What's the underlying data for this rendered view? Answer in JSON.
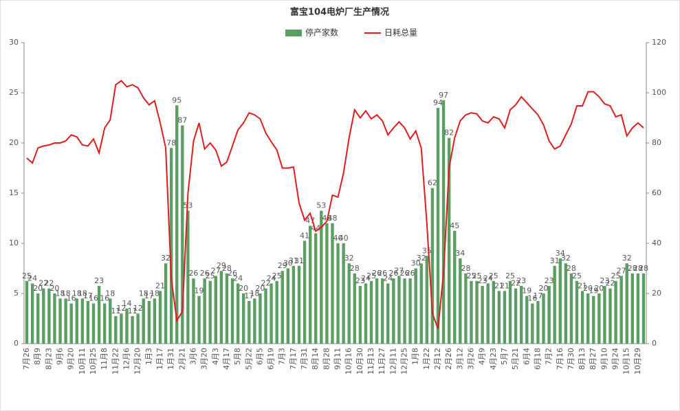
{
  "chart_data": {
    "type": "bar",
    "title": "富宝104电炉厂生产情况",
    "categories": [
      "7月26",
      null,
      "8月9",
      null,
      "8月23",
      null,
      "9月6",
      null,
      "9月20",
      null,
      "10月11",
      null,
      "10月25",
      null,
      "11月8",
      null,
      "11月22",
      null,
      "12月6",
      null,
      "12月20",
      null,
      "1月3",
      null,
      "1月17",
      null,
      "1月31",
      null,
      "2月21",
      null,
      "3月6",
      null,
      "3月20",
      null,
      "4月3",
      null,
      "4月17",
      null,
      "5月8",
      null,
      "5月22",
      null,
      "6月5",
      null,
      "6月19",
      null,
      "7月3",
      null,
      "7月17",
      null,
      "7月31",
      null,
      "8月14",
      null,
      "8月28",
      null,
      "9月11",
      null,
      "10月16",
      null,
      "10月30",
      null,
      "11月13",
      null,
      "11月27",
      null,
      "12月11",
      null,
      "12月25",
      null,
      "1月8",
      null,
      "1月22",
      null,
      "2月12",
      null,
      "2月26",
      null,
      "3月12",
      null,
      "3月26",
      null,
      "4月9",
      null,
      "4月23",
      null,
      "5月7",
      null,
      "5月21",
      null,
      "6月4",
      null,
      "6月18",
      null,
      "7月2",
      null,
      "7月16",
      null,
      "7月30",
      null,
      "8月13",
      null,
      "8月27",
      null,
      "9月10",
      null,
      "9月24",
      null,
      "10月15",
      null,
      "10月29",
      null
    ],
    "series": [
      {
        "name": "停产家数",
        "type": "bar",
        "axis": "y2",
        "color": "#5a9e62",
        "values": [
          25,
          24,
          20,
          22,
          22,
          20,
          18,
          18,
          16,
          18,
          18,
          17,
          16,
          23,
          16,
          18,
          11,
          12,
          14,
          11,
          12,
          18,
          17,
          18,
          21,
          32,
          78,
          95,
          87,
          53,
          26,
          19,
          26,
          25,
          27,
          29,
          28,
          26,
          24,
          20,
          17,
          18,
          20,
          22,
          24,
          25,
          29,
          30,
          31,
          31,
          41,
          47,
          44,
          53,
          48,
          48,
          40,
          40,
          32,
          28,
          23,
          24,
          25,
          26,
          26,
          24,
          26,
          27,
          26,
          26,
          30,
          32,
          35,
          62,
          94,
          97,
          82,
          45,
          34,
          28,
          25,
          25,
          23,
          24,
          25,
          21,
          21,
          25,
          22,
          23,
          19,
          16,
          17,
          20,
          23,
          31,
          34,
          32,
          28,
          25,
          21,
          20,
          19,
          20,
          23,
          22,
          25,
          27,
          32,
          28,
          28,
          28
        ]
      },
      {
        "name": "日耗总量",
        "type": "line",
        "axis": "y",
        "color": "#e31a1c",
        "values": [
          18.5,
          18,
          19.5,
          19.7,
          19.8,
          20,
          20,
          20.2,
          20.8,
          20.6,
          19.8,
          19.7,
          20.4,
          19,
          21.5,
          22.3,
          25.8,
          26.2,
          25.6,
          25.8,
          25.5,
          24.5,
          23.8,
          24.2,
          22,
          19.5,
          6.5,
          2.3,
          3.2,
          15,
          20.2,
          22,
          19.4,
          20,
          19.3,
          17.7,
          18.1,
          19.7,
          21.3,
          22,
          23,
          22.8,
          22.4,
          21,
          20.1,
          19.3,
          17.5,
          17.5,
          17.6,
          14,
          12.3,
          13,
          11.2,
          11.6,
          12.2,
          14.8,
          14.6,
          17,
          20.5,
          23.3,
          22.5,
          23.2,
          22.4,
          22.8,
          22.2,
          20.8,
          21.5,
          22.1,
          21.5,
          20.4,
          21.2,
          19.5,
          12,
          3,
          1.5,
          7,
          17.5,
          20.5,
          22.2,
          22.8,
          23,
          22.9,
          22.2,
          22,
          22.6,
          22.4,
          21.5,
          23.3,
          23.8,
          24.6,
          24,
          23.4,
          22.8,
          21.8,
          20.2,
          19.4,
          19.7,
          20.8,
          21.9,
          23.7,
          23.7,
          25.1,
          25.1,
          24.6,
          23.9,
          23.7,
          22.6,
          22.8,
          20.7,
          21.5,
          22,
          21.5
        ]
      }
    ],
    "ylim": [
      0,
      30
    ],
    "yticks": [
      0,
      5,
      10,
      15,
      20,
      25,
      30
    ],
    "y2lim": [
      0,
      120
    ],
    "y2ticks": [
      0,
      20,
      40,
      60,
      80,
      100,
      120
    ],
    "legend": "top"
  }
}
